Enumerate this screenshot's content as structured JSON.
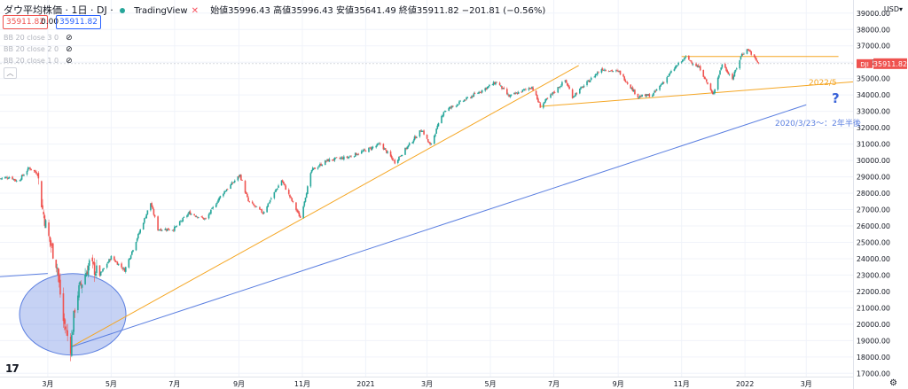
{
  "header": {
    "symbol": "ダウ平均株価 · 1日 · DJ · ",
    "source": "TradingView",
    "close_x": "✕",
    "ohlc_text": "始値35996.43 高値35996.43 安値35641.49 終値35911.82 −201.81 (−0.56%)"
  },
  "price_boxes": {
    "bid": "35911.82",
    "spread": "0.00",
    "ask": "35911.82"
  },
  "indicators": [
    "BB 20 close 3 0",
    "BB 20 close 2 0",
    "BB 20 close 1 0"
  ],
  "currency": "USD▾",
  "last_price_label": {
    "symbol": "DJI",
    "value": "35911.82"
  },
  "annotations": {
    "yellow_label": "2022/5",
    "blue_label": "2020/3/23〜：2年半後",
    "question": "?"
  },
  "colors": {
    "up": "#26a69a",
    "down": "#ef5350",
    "trend_yellow": "#f5a623",
    "trend_blue": "#5b7fe0",
    "grid": "#f0f3fa"
  },
  "chart_data": {
    "type": "candlestick",
    "series_name": "",
    "ylim": [
      16800,
      39800
    ],
    "y_ticks": [
      17000,
      18000,
      19000,
      20000,
      21000,
      22000,
      23000,
      24000,
      25000,
      26000,
      27000,
      28000,
      29000,
      30000,
      31000,
      32000,
      33000,
      34000,
      35000,
      36000,
      37000,
      38000,
      39000
    ],
    "x_labels": [
      "3月",
      "5月",
      "7月",
      "9月",
      "11月",
      "2021",
      "3月",
      "5月",
      "7月",
      "9月",
      "11月",
      "2022",
      "3月"
    ],
    "x_label_dates": [
      "2020-03-01",
      "2020-05-01",
      "2020-07-01",
      "2020-09-01",
      "2020-11-01",
      "2021-01-01",
      "2021-03-01",
      "2021-05-01",
      "2021-07-01",
      "2021-09-01",
      "2021-11-01",
      "2022-01-01",
      "2022-03-01"
    ],
    "x_range": [
      "2020-01-15",
      "2022-04-15"
    ],
    "close_path": [
      [
        "2020-01-15",
        28900
      ],
      [
        "2020-01-25",
        29000
      ],
      [
        "2020-02-01",
        28700
      ],
      [
        "2020-02-12",
        29550
      ],
      [
        "2020-02-20",
        29200
      ],
      [
        "2020-02-25",
        27000
      ],
      [
        "2020-03-01",
        25500
      ],
      [
        "2020-03-10",
        23500
      ],
      [
        "2020-03-16",
        20200
      ],
      [
        "2020-03-23",
        18590
      ],
      [
        "2020-03-28",
        21600
      ],
      [
        "2020-04-10",
        23700
      ],
      [
        "2020-04-20",
        23000
      ],
      [
        "2020-05-01",
        24100
      ],
      [
        "2020-05-14",
        23300
      ],
      [
        "2020-06-08",
        27400
      ],
      [
        "2020-06-15",
        25800
      ],
      [
        "2020-06-30",
        25800
      ],
      [
        "2020-07-15",
        26800
      ],
      [
        "2020-07-31",
        26400
      ],
      [
        "2020-08-15",
        27900
      ],
      [
        "2020-09-02",
        29100
      ],
      [
        "2020-09-10",
        27500
      ],
      [
        "2020-09-24",
        26800
      ],
      [
        "2020-10-12",
        28800
      ],
      [
        "2020-10-30",
        26500
      ],
      [
        "2020-11-10",
        29400
      ],
      [
        "2020-11-25",
        30000
      ],
      [
        "2020-12-15",
        30200
      ],
      [
        "2020-12-31",
        30600
      ],
      [
        "2021-01-15",
        31000
      ],
      [
        "2021-01-29",
        29900
      ],
      [
        "2021-02-24",
        31900
      ],
      [
        "2021-03-04",
        30900
      ],
      [
        "2021-03-17",
        33000
      ],
      [
        "2021-04-15",
        34000
      ],
      [
        "2021-05-07",
        34800
      ],
      [
        "2021-05-19",
        33900
      ],
      [
        "2021-06-10",
        34500
      ],
      [
        "2021-06-18",
        33300
      ],
      [
        "2021-07-12",
        34900
      ],
      [
        "2021-07-19",
        33900
      ],
      [
        "2021-08-16",
        35600
      ],
      [
        "2021-09-02",
        35400
      ],
      [
        "2021-09-20",
        33900
      ],
      [
        "2021-10-04",
        34000
      ],
      [
        "2021-10-26",
        35700
      ],
      [
        "2021-11-05",
        36300
      ],
      [
        "2021-11-19",
        35600
      ],
      [
        "2021-12-01",
        34000
      ],
      [
        "2021-12-10",
        35900
      ],
      [
        "2021-12-20",
        35000
      ],
      [
        "2021-12-29",
        36500
      ],
      [
        "2022-01-04",
        36800
      ],
      [
        "2022-01-14",
        35911.82
      ]
    ],
    "trendlines": [
      {
        "color": "yellow",
        "points": [
          [
            "2020-03-23",
            18600
          ],
          [
            "2021-07-25",
            35800
          ]
        ]
      },
      {
        "color": "yellow",
        "points": [
          [
            "2021-06-18",
            33300
          ],
          [
            "2022-04-15",
            34800
          ]
        ]
      },
      {
        "color": "yellow",
        "points": [
          [
            "2021-11-01",
            36350
          ],
          [
            "2022-04-01",
            36350
          ]
        ]
      },
      {
        "color": "blue",
        "points": [
          [
            "2020-01-15",
            22900
          ],
          [
            "2020-03-01",
            23100
          ]
        ]
      },
      {
        "color": "blue",
        "points": [
          [
            "2020-03-23",
            18600
          ],
          [
            "2022-03-01",
            33400
          ]
        ]
      }
    ],
    "ellipse": {
      "center": [
        "2020-03-25",
        20600
      ],
      "color": "blue"
    }
  }
}
